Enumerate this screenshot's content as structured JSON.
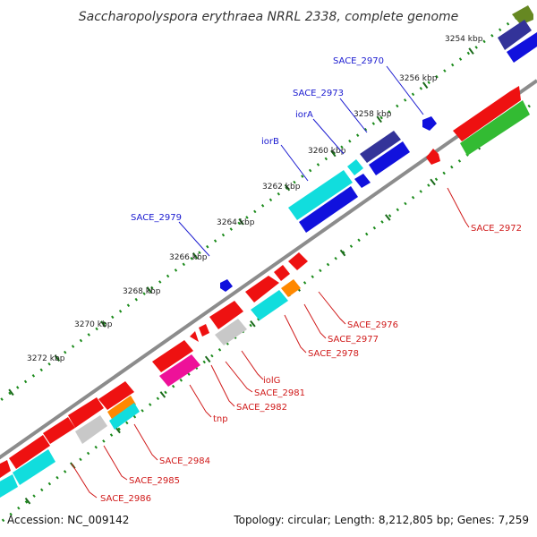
{
  "title": "Saccharopolyspora erythraea NRRL 2338, complete genome",
  "footer": {
    "accession": "Accession: NC_009142",
    "summary": "Topology: circular; Length: 8,212,805 bp; Genes: 7,259"
  },
  "ticks": [
    "3254 kbp",
    "3256 kbp",
    "3258 kbp",
    "3260 kbp",
    "3262 kbp",
    "3264 kbp",
    "3266 kbp",
    "3268 kbp",
    "3270 kbp",
    "3272 kbp"
  ],
  "colors": {
    "backbone": "#8c8c8c",
    "tick_dot": "#1a8a1a",
    "label_blue": "#1a1ad0",
    "label_red": "#d01a1a",
    "gene_red": "#ee1111",
    "gene_blue": "#1111dd",
    "gene_cyan": "#11dddd",
    "gene_navy": "#333399",
    "gene_green": "#33bb33",
    "gene_gray": "#c8c8c8",
    "gene_orange": "#ff8800",
    "gene_pink": "#ee1199",
    "gene_olive": "#668822"
  },
  "labels": {
    "outer": [
      "SACE_2970",
      "SACE_2973",
      "iorA",
      "iorB",
      "SACE_2979"
    ],
    "inner": [
      "SACE_2972",
      "SACE_2976",
      "SACE_2977",
      "SACE_2978",
      "iolG",
      "SACE_2981",
      "SACE_2982",
      "tnp",
      "SACE_2984",
      "SACE_2985",
      "SACE_2986"
    ]
  }
}
